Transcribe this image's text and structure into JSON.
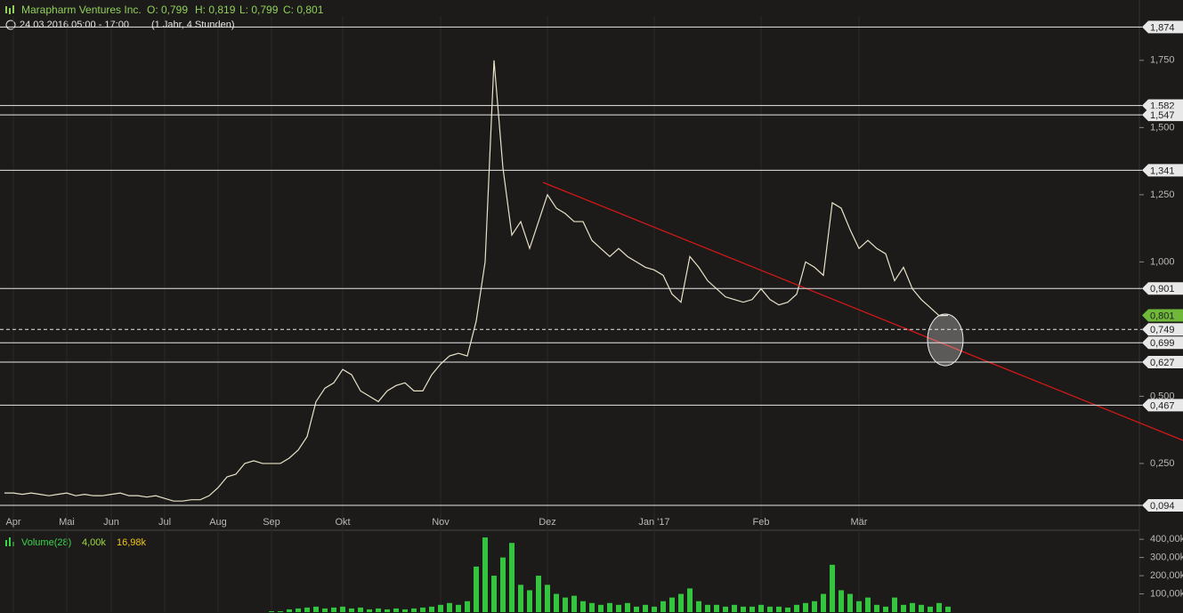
{
  "header": {
    "instrument": "Marapharm Ventures Inc.",
    "open": "O: 0,799",
    "high": "H: 0,819",
    "low": "L: 0,799",
    "close": "C: 0,801",
    "range": "24.03.2016 05:00 - 17:00",
    "period": "(1 Jahr, 4 Stunden)"
  },
  "chart_data": [
    {
      "type": "line",
      "categories": [
        null,
        "Apr",
        null,
        null,
        null,
        null,
        null,
        "Mai",
        null,
        null,
        null,
        null,
        "Jun",
        null,
        null,
        null,
        null,
        null,
        "Jul",
        null,
        null,
        null,
        null,
        null,
        "Aug",
        null,
        null,
        null,
        null,
        null,
        "Sep",
        null,
        null,
        null,
        null,
        null,
        null,
        null,
        "Okt",
        null,
        null,
        null,
        null,
        null,
        null,
        null,
        null,
        null,
        null,
        "Nov",
        null,
        null,
        null,
        null,
        null,
        null,
        null,
        null,
        null,
        null,
        null,
        "Dez",
        null,
        null,
        null,
        null,
        null,
        null,
        null,
        null,
        null,
        null,
        null,
        "Jan '17",
        null,
        null,
        null,
        null,
        null,
        null,
        null,
        null,
        null,
        null,
        null,
        "Feb",
        null,
        null,
        null,
        null,
        null,
        null,
        null,
        null,
        null,
        null,
        "Mär",
        null,
        null,
        null,
        null,
        null,
        null,
        null,
        null,
        null,
        null,
        null,
        null,
        null,
        null,
        null,
        null,
        null,
        null,
        null,
        null,
        null,
        null,
        null,
        null,
        null,
        null,
        null,
        null,
        null,
        null,
        null
      ],
      "series": [
        {
          "name": "Marapharm Ventures Inc.",
          "color": "#e8e2c8",
          "values": [
            0.14,
            0.14,
            0.135,
            0.14,
            0.135,
            0.13,
            0.135,
            0.14,
            0.13,
            0.135,
            0.13,
            0.13,
            0.135,
            0.14,
            0.13,
            0.13,
            0.125,
            0.13,
            0.12,
            0.11,
            0.11,
            0.115,
            0.115,
            0.13,
            0.16,
            0.2,
            0.21,
            0.25,
            0.26,
            0.25,
            0.25,
            0.25,
            0.27,
            0.3,
            0.35,
            0.48,
            0.53,
            0.55,
            0.6,
            0.58,
            0.52,
            0.5,
            0.48,
            0.52,
            0.54,
            0.55,
            0.52,
            0.52,
            0.58,
            0.62,
            0.65,
            0.66,
            0.65,
            0.78,
            1.0,
            1.75,
            1.35,
            1.1,
            1.15,
            1.05,
            1.15,
            1.25,
            1.2,
            1.18,
            1.15,
            1.15,
            1.08,
            1.05,
            1.02,
            1.05,
            1.02,
            1.0,
            0.98,
            0.97,
            0.95,
            0.88,
            0.85,
            1.02,
            0.98,
            0.93,
            0.9,
            0.87,
            0.86,
            0.85,
            0.86,
            0.9,
            0.86,
            0.84,
            0.85,
            0.88,
            1.0,
            0.98,
            0.95,
            1.22,
            1.2,
            1.12,
            1.05,
            1.08,
            1.05,
            1.03,
            0.93,
            0.98,
            0.9,
            0.86,
            0.83,
            0.8,
            0.801,
            null,
            null,
            null,
            null,
            null,
            null,
            null,
            null,
            null,
            null,
            null,
            null,
            null,
            null,
            null,
            null,
            null,
            null,
            null,
            null,
            null
          ]
        }
      ],
      "ylim": [
        0.061,
        1.915
      ],
      "yticks": [
        {
          "value": 1.75,
          "label": "1,750"
        },
        {
          "value": 1.5,
          "label": "1,500"
        },
        {
          "value": 1.25,
          "label": "1,250"
        },
        {
          "value": 1.0,
          "label": "1,000"
        },
        {
          "value": 0.5,
          "label": "0,500"
        },
        {
          "value": 0.25,
          "label": "0,250"
        }
      ],
      "levels": [
        {
          "value": 1.874,
          "label": "1,874"
        },
        {
          "value": 1.582,
          "label": "1,582"
        },
        {
          "value": 1.547,
          "label": "1,547"
        },
        {
          "value": 1.341,
          "label": "1,341"
        },
        {
          "value": 0.901,
          "label": "0,901"
        },
        {
          "value": 0.749,
          "label": "0,749",
          "dashed": true
        },
        {
          "value": 0.699,
          "label": "0,699"
        },
        {
          "value": 0.627,
          "label": "0,627"
        },
        {
          "value": 0.467,
          "label": "0,467"
        },
        {
          "value": 0.094,
          "label": "0,094"
        }
      ],
      "last_price": {
        "value": 0.801,
        "label": "0,801",
        "color": "#6fb83a"
      },
      "grid": true
    },
    {
      "type": "bar",
      "series": [
        {
          "name": "Volume(28)",
          "color": "#35c43f",
          "values": [
            0,
            0,
            0,
            0,
            0,
            0,
            0,
            0,
            0,
            0,
            0,
            0,
            0,
            0,
            0,
            0,
            0,
            0,
            0,
            0,
            0,
            0,
            0,
            0,
            0,
            0,
            0,
            0,
            0,
            0,
            5000,
            5000,
            15000,
            20000,
            25000,
            30000,
            20000,
            25000,
            30000,
            20000,
            25000,
            15000,
            20000,
            15000,
            20000,
            15000,
            20000,
            25000,
            30000,
            40000,
            50000,
            40000,
            60000,
            250000,
            410000,
            200000,
            300000,
            380000,
            150000,
            120000,
            200000,
            150000,
            100000,
            80000,
            90000,
            60000,
            50000,
            40000,
            50000,
            40000,
            50000,
            30000,
            40000,
            30000,
            60000,
            80000,
            100000,
            130000,
            60000,
            40000,
            40000,
            30000,
            40000,
            30000,
            30000,
            40000,
            30000,
            30000,
            25000,
            40000,
            50000,
            60000,
            100000,
            260000,
            120000,
            100000,
            60000,
            80000,
            40000,
            30000,
            80000,
            40000,
            50000,
            40000,
            30000,
            50000,
            30000,
            null,
            null,
            null,
            null,
            null,
            null,
            null,
            null,
            null,
            null,
            null,
            null,
            null,
            null,
            null,
            null,
            null,
            null,
            null,
            null,
            null
          ]
        }
      ],
      "legend_values": [
        "4,00k",
        "16,98k"
      ],
      "ylim": [
        0,
        430000
      ],
      "yticks": [
        {
          "value": 400000,
          "label": "400,00k"
        },
        {
          "value": 300000,
          "label": "300,00k"
        },
        {
          "value": 200000,
          "label": "200,00k"
        },
        {
          "value": 100000,
          "label": "100,00k"
        }
      ]
    }
  ]
}
